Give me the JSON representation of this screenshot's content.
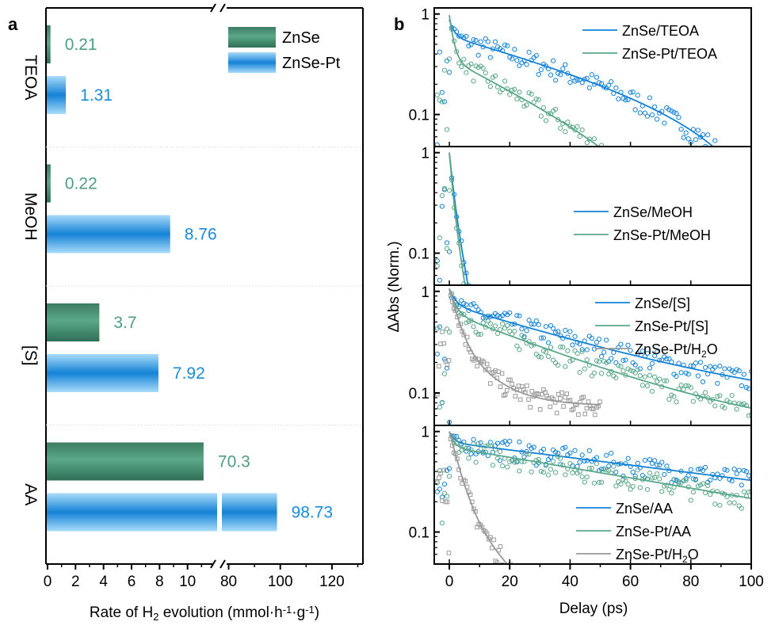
{
  "colors": {
    "green_dark": "#2f6f55",
    "green_mid": "#5aa88a",
    "green_label": "#4e9e82",
    "blue_dark": "#1482d6",
    "blue_light": "#8ccdf6",
    "blue_label": "#1a8bdc",
    "gray": "#9a9a9a"
  },
  "chart_data": [
    {
      "panel": "a",
      "type": "bar",
      "orientation": "horizontal",
      "panel_label": "a",
      "xlabel": "Rate of H2 evolution (mmol·h⁻¹·g⁻¹)",
      "xlabel_parts": {
        "pre": "Rate of H",
        "sub": "2",
        "mid": " evolution (mmol·h",
        "sup1": "-1",
        "dot": "·g",
        "sup2": "-1",
        "post": ")"
      },
      "x_axis_broken": true,
      "x_segments": [
        {
          "range": [
            0,
            12
          ],
          "ticks": [
            0,
            2,
            4,
            6,
            8,
            10
          ]
        },
        {
          "range": [
            78,
            132
          ],
          "ticks": [
            80,
            100,
            120
          ]
        }
      ],
      "categories": [
        "TEOA",
        "MeOH",
        "[S]",
        "AA"
      ],
      "series": [
        {
          "name": "ZnSe",
          "values": [
            0.21,
            0.22,
            3.7,
            70.3
          ],
          "labels": [
            "0.21",
            "0.22",
            "3.7",
            "70.3"
          ]
        },
        {
          "name": "ZnSe-Pt",
          "values": [
            1.31,
            8.76,
            7.92,
            98.73
          ],
          "labels": [
            "1.31",
            "8.76",
            "7.92",
            "98.73"
          ]
        }
      ],
      "legend": {
        "placement": "top-right",
        "entries": [
          "ZnSe",
          "ZnSe-Pt"
        ]
      }
    },
    {
      "panel": "b",
      "type": "scatter",
      "panel_label": "b",
      "xlabel": "Delay (ps)",
      "ylabel": "ΔAbs (Norm.)",
      "xlim": [
        -5,
        100
      ],
      "xticks": [
        0,
        20,
        40,
        60,
        80,
        100
      ],
      "yscale": "log",
      "yticks": [
        "1",
        "0.1"
      ],
      "subplots": [
        {
          "ylim": [
            0.048,
            1.15
          ],
          "legend": {
            "placement": "top-right",
            "entries": [
              "ZnSe/TEOA",
              "ZnSe-Pt/TEOA"
            ]
          },
          "series": [
            {
              "name": "ZnSe/TEOA",
              "color": "blue",
              "marker": "circle",
              "fit": {
                "a1": 0.28,
                "t1": 1.5,
                "a2": 0.72,
                "t2": 60,
                "c": -0.12
              }
            },
            {
              "name": "ZnSe-Pt/TEOA",
              "color": "green",
              "marker": "circle",
              "fit": {
                "a1": 0.62,
                "t1": 1.3,
                "a2": 0.38,
                "t2": 30,
                "c": -0.025
              }
            }
          ]
        },
        {
          "ylim": [
            0.048,
            1.15
          ],
          "legend": {
            "placement": "middle-right",
            "entries": [
              "ZnSe/MeOH",
              "ZnSe-Pt/MeOH"
            ]
          },
          "series": [
            {
              "name": "ZnSe/MeOH",
              "color": "blue",
              "marker": "circle",
              "fit": {
                "a1": 0.5,
                "t1": 1.0,
                "a2": 0.5,
                "t2": 2.6,
                "c": 0
              }
            },
            {
              "name": "ZnSe-Pt/MeOH",
              "color": "green",
              "marker": "circle",
              "fit": {
                "a1": 0.6,
                "t1": 0.9,
                "a2": 0.4,
                "t2": 2.4,
                "c": 0
              }
            }
          ]
        },
        {
          "ylim": [
            0.048,
            1.15
          ],
          "legend": {
            "placement": "top-right",
            "entries": [
              "ZnSe/[S]",
              "ZnSe-Pt/[S]",
              "ZnSe-Pt/H2O"
            ]
          },
          "series": [
            {
              "name": "ZnSe/[S]",
              "color": "blue",
              "marker": "circle",
              "fit": {
                "a1": 0.32,
                "t1": 2.0,
                "a2": 0.68,
                "t2": 45,
                "c": 0.06
              }
            },
            {
              "name": "ZnSe-Pt/[S]",
              "color": "green",
              "marker": "circle",
              "fit": {
                "a1": 0.42,
                "t1": 2.0,
                "a2": 0.58,
                "t2": 36,
                "c": 0.035
              }
            },
            {
              "name": "ZnSe-Pt/H2O",
              "color": "gray",
              "marker": "square",
              "xmax": 50,
              "fit": {
                "a1": 0.72,
                "t1": 2.8,
                "a2": 0.28,
                "t2": 10,
                "c": 0.075
              }
            }
          ]
        },
        {
          "ylim": [
            0.048,
            1.15
          ],
          "legend": {
            "placement": "bottom-right",
            "entries": [
              "ZnSe/AA",
              "ZnSe-Pt/AA",
              "ZnSe-Pt/H2O"
            ]
          },
          "series": [
            {
              "name": "ZnSe/AA",
              "color": "blue",
              "marker": "circle",
              "fit": {
                "a1": 0.22,
                "t1": 1.5,
                "a2": 0.78,
                "t2": 115,
                "c": 0
              }
            },
            {
              "name": "ZnSe-Pt/AA",
              "color": "green",
              "marker": "circle",
              "fit": {
                "a1": 0.3,
                "t1": 1.5,
                "a2": 0.7,
                "t2": 85,
                "c": 0
              }
            },
            {
              "name": "ZnSe-Pt/H2O",
              "color": "gray",
              "marker": "square",
              "xmax": 23,
              "fit": {
                "a1": 0.82,
                "t1": 3.2,
                "a2": 0.18,
                "t2": 14,
                "c": 0
              }
            }
          ]
        }
      ]
    }
  ]
}
